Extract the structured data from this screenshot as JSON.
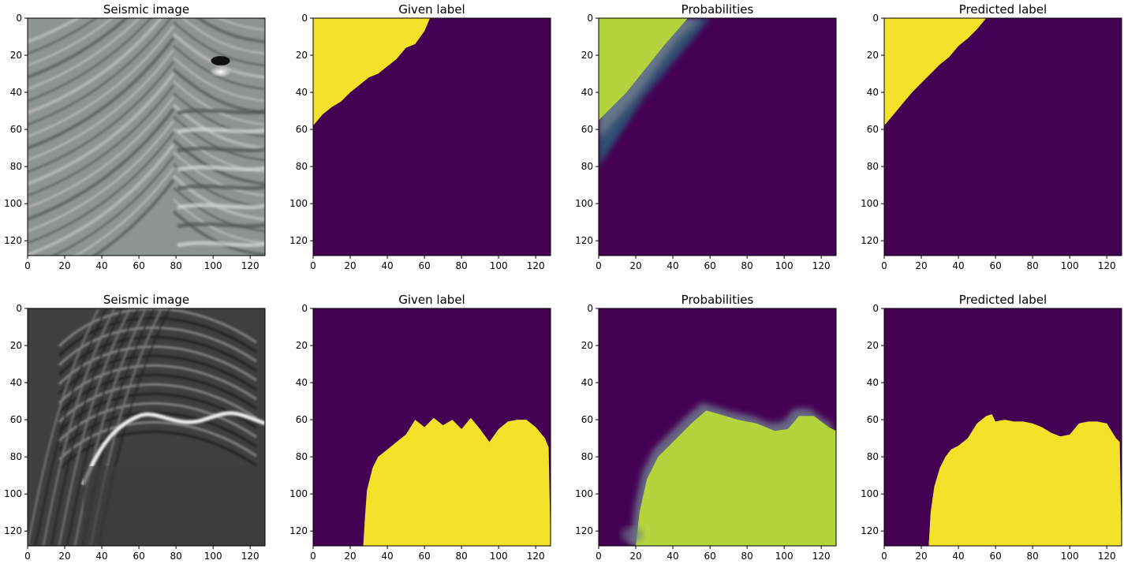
{
  "figure": {
    "rows": [
      {
        "panels": [
          {
            "title": "Seismic image",
            "kind": "seismic-top",
            "layer": "top"
          },
          {
            "title": "Given label",
            "kind": "label",
            "layer": "top"
          },
          {
            "title": "Probabilities",
            "kind": "prob",
            "layer": "top"
          },
          {
            "title": "Predicted label",
            "kind": "label",
            "layer": "top"
          }
        ]
      },
      {
        "panels": [
          {
            "title": "Seismic image",
            "kind": "seismic-bottom",
            "layer": "bottom"
          },
          {
            "title": "Given label",
            "kind": "label",
            "layer": "bottom"
          },
          {
            "title": "Probabilities",
            "kind": "prob",
            "layer": "bottom"
          },
          {
            "title": "Predicted label",
            "kind": "label",
            "layer": "bottom"
          }
        ]
      }
    ]
  },
  "chart_data": [
    {
      "type": "heatmap",
      "title": "Seismic image",
      "xticks": [
        "0",
        "20",
        "40",
        "60",
        "80",
        "100",
        "120"
      ],
      "yticks": [
        "0",
        "20",
        "40",
        "60",
        "80",
        "100",
        "120"
      ],
      "xlim": [
        0,
        128
      ],
      "ylim": [
        128,
        0
      ],
      "colormap": "grayscale"
    },
    {
      "type": "heatmap",
      "title": "Given label",
      "xticks": [
        "0",
        "20",
        "40",
        "60",
        "80",
        "100",
        "120"
      ],
      "yticks": [
        "0",
        "20",
        "40",
        "60",
        "80",
        "100",
        "120"
      ],
      "xlim": [
        0,
        128
      ],
      "ylim": [
        128,
        0
      ],
      "colors": {
        "background": "#440154",
        "class": "#f3e12a"
      },
      "boundary": {
        "x": [
          0,
          5,
          10,
          15,
          20,
          25,
          30,
          35,
          40,
          45,
          50,
          55,
          60,
          63
        ],
        "y": [
          58,
          52,
          48,
          45,
          40,
          36,
          32,
          30,
          26,
          22,
          16,
          14,
          7,
          0
        ]
      }
    },
    {
      "type": "heatmap",
      "title": "Probabilities",
      "xticks": [
        "0",
        "20",
        "40",
        "60",
        "80",
        "100",
        "120"
      ],
      "yticks": [
        "0",
        "20",
        "40",
        "60",
        "80",
        "100",
        "120"
      ],
      "xlim": [
        0,
        128
      ],
      "ylim": [
        128,
        0
      ],
      "colormap": "viridis"
    },
    {
      "type": "heatmap",
      "title": "Predicted label",
      "xticks": [
        "0",
        "20",
        "40",
        "60",
        "80",
        "100",
        "120"
      ],
      "yticks": [
        "0",
        "20",
        "40",
        "60",
        "80",
        "100",
        "120"
      ],
      "xlim": [
        0,
        128
      ],
      "ylim": [
        128,
        0
      ],
      "colors": {
        "background": "#440154",
        "class": "#f3e12a"
      },
      "boundary": {
        "x": [
          0,
          5,
          10,
          15,
          20,
          25,
          30,
          35,
          40,
          45,
          50,
          55
        ],
        "y": [
          58,
          52,
          46,
          40,
          35,
          30,
          25,
          21,
          15,
          11,
          6,
          0
        ]
      }
    },
    {
      "type": "heatmap",
      "title": "Seismic image",
      "xticks": [
        "0",
        "20",
        "40",
        "60",
        "80",
        "100",
        "120"
      ],
      "yticks": [
        "0",
        "20",
        "40",
        "60",
        "80",
        "100",
        "120"
      ],
      "xlim": [
        0,
        128
      ],
      "ylim": [
        128,
        0
      ],
      "colormap": "grayscale"
    },
    {
      "type": "heatmap",
      "title": "Given label",
      "xticks": [
        "0",
        "20",
        "40",
        "60",
        "80",
        "100",
        "120"
      ],
      "yticks": [
        "0",
        "20",
        "40",
        "60",
        "80",
        "100",
        "120"
      ],
      "xlim": [
        0,
        128
      ],
      "ylim": [
        128,
        0
      ],
      "colors": {
        "background": "#440154",
        "class": "#f3e12a"
      },
      "boundary": {
        "x": [
          27,
          28,
          29,
          32,
          35,
          40,
          45,
          50,
          55,
          60,
          65,
          70,
          75,
          80,
          85,
          90,
          95,
          100,
          105,
          110,
          115,
          120,
          125,
          127
        ],
        "y": [
          128,
          112,
          98,
          86,
          80,
          76,
          72,
          68,
          60,
          64,
          59,
          63,
          60,
          65,
          59,
          65,
          72,
          65,
          61,
          60,
          60,
          64,
          70,
          75
        ]
      }
    },
    {
      "type": "heatmap",
      "title": "Probabilities",
      "xticks": [
        "0",
        "20",
        "40",
        "60",
        "80",
        "100",
        "120"
      ],
      "yticks": [
        "0",
        "20",
        "40",
        "60",
        "80",
        "100",
        "120"
      ],
      "xlim": [
        0,
        128
      ],
      "ylim": [
        128,
        0
      ],
      "colormap": "viridis"
    },
    {
      "type": "heatmap",
      "title": "Predicted label",
      "xticks": [
        "0",
        "20",
        "40",
        "60",
        "80",
        "100",
        "120"
      ],
      "yticks": [
        "0",
        "20",
        "40",
        "60",
        "80",
        "100",
        "120"
      ],
      "xlim": [
        0,
        128
      ],
      "ylim": [
        128,
        0
      ],
      "colors": {
        "background": "#440154",
        "class": "#f3e12a"
      },
      "boundary": {
        "x": [
          24,
          25,
          27,
          30,
          33,
          36,
          40,
          45,
          50,
          55,
          58,
          60,
          65,
          70,
          75,
          80,
          85,
          90,
          95,
          100,
          105,
          110,
          115,
          120,
          125,
          127
        ],
        "y": [
          128,
          110,
          96,
          86,
          80,
          76,
          74,
          70,
          62,
          58,
          57,
          61,
          60,
          61,
          61,
          62,
          64,
          67,
          69,
          68,
          62,
          61,
          61,
          62,
          70,
          72
        ]
      }
    }
  ]
}
